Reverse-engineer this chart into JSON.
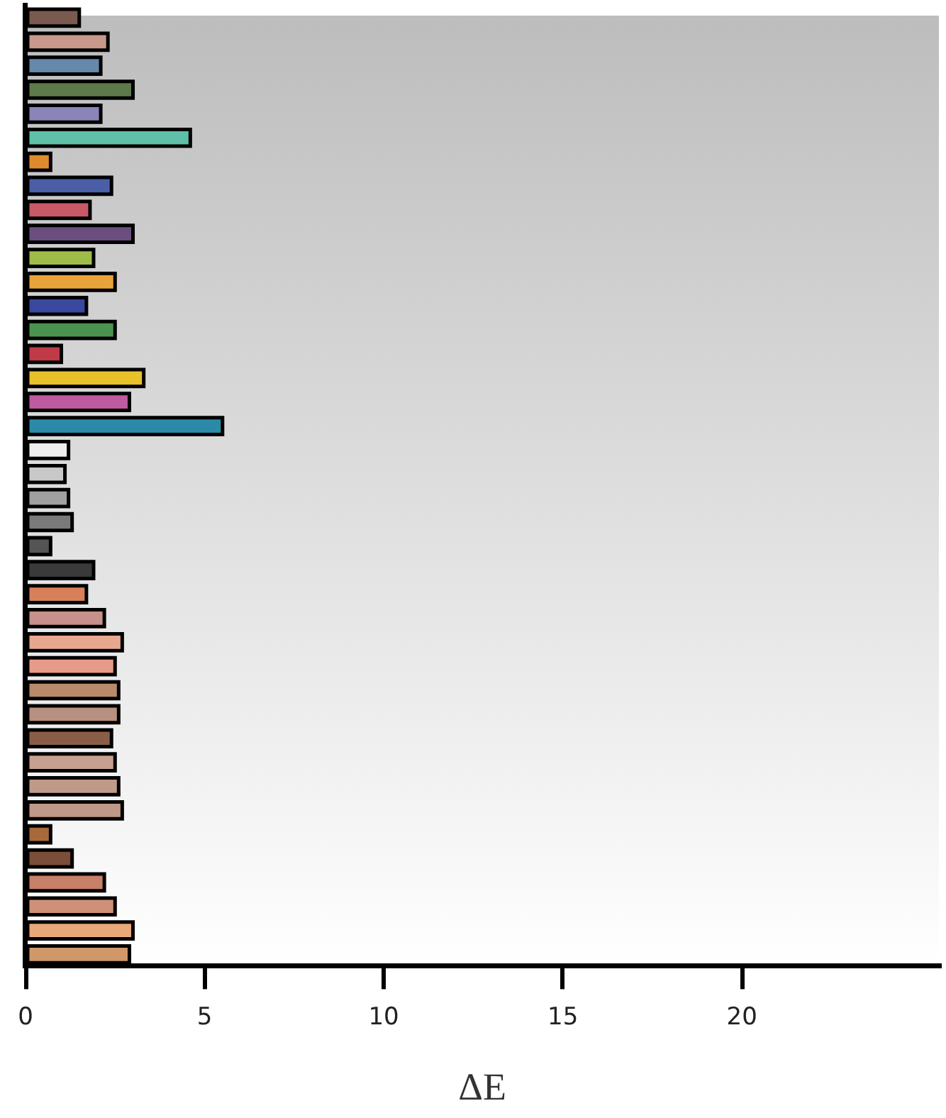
{
  "chart_data": {
    "type": "bar",
    "orientation": "horizontal",
    "xlabel": "ΔE",
    "categories": [
      null,
      null,
      null,
      null,
      null,
      null,
      null,
      null,
      null,
      null,
      null,
      null,
      null,
      null,
      null,
      null,
      null,
      null,
      null,
      null,
      null,
      null,
      null,
      null,
      null,
      null,
      null,
      null,
      null,
      null,
      null,
      null,
      null,
      null,
      null,
      null,
      null,
      null,
      null,
      null
    ],
    "values": [
      1.5,
      2.3,
      2.1,
      3.0,
      2.1,
      4.6,
      0.7,
      2.4,
      1.8,
      3.0,
      1.9,
      2.5,
      1.7,
      2.5,
      1.0,
      3.3,
      2.9,
      5.5,
      1.2,
      1.1,
      1.2,
      1.3,
      0.7,
      1.9,
      1.7,
      2.2,
      2.7,
      2.5,
      2.6,
      2.6,
      2.4,
      2.5,
      2.6,
      2.7,
      0.7,
      1.3,
      2.2,
      2.5,
      3.0,
      2.9
    ],
    "colors": [
      "#7a5a4e",
      "#c8998a",
      "#6688aa",
      "#5c7a4a",
      "#8a84b8",
      "#5fbfa8",
      "#e08a2e",
      "#4a5fa8",
      "#c85a68",
      "#6a4e80",
      "#9ebd48",
      "#e8a43a",
      "#3a48a0",
      "#4a9450",
      "#c03a48",
      "#e8c02a",
      "#c05a9e",
      "#2a8aa8",
      "#eeeeee",
      "#c8c8c8",
      "#a0a0a0",
      "#7a7a7a",
      "#555555",
      "#3a3a3a",
      "#d8805a",
      "#c8908a",
      "#e8a890",
      "#e89a88",
      "#b88a6a",
      "#b89080",
      "#8a5e46",
      "#c8a090",
      "#c09a88",
      "#c09888",
      "#a86a3a",
      "#7a4e38",
      "#c88068",
      "#d09078",
      "#e8a878",
      "#d09868"
    ],
    "xlim": [
      0,
      25.5
    ],
    "xticks": [
      0,
      5,
      10,
      15,
      20
    ]
  }
}
